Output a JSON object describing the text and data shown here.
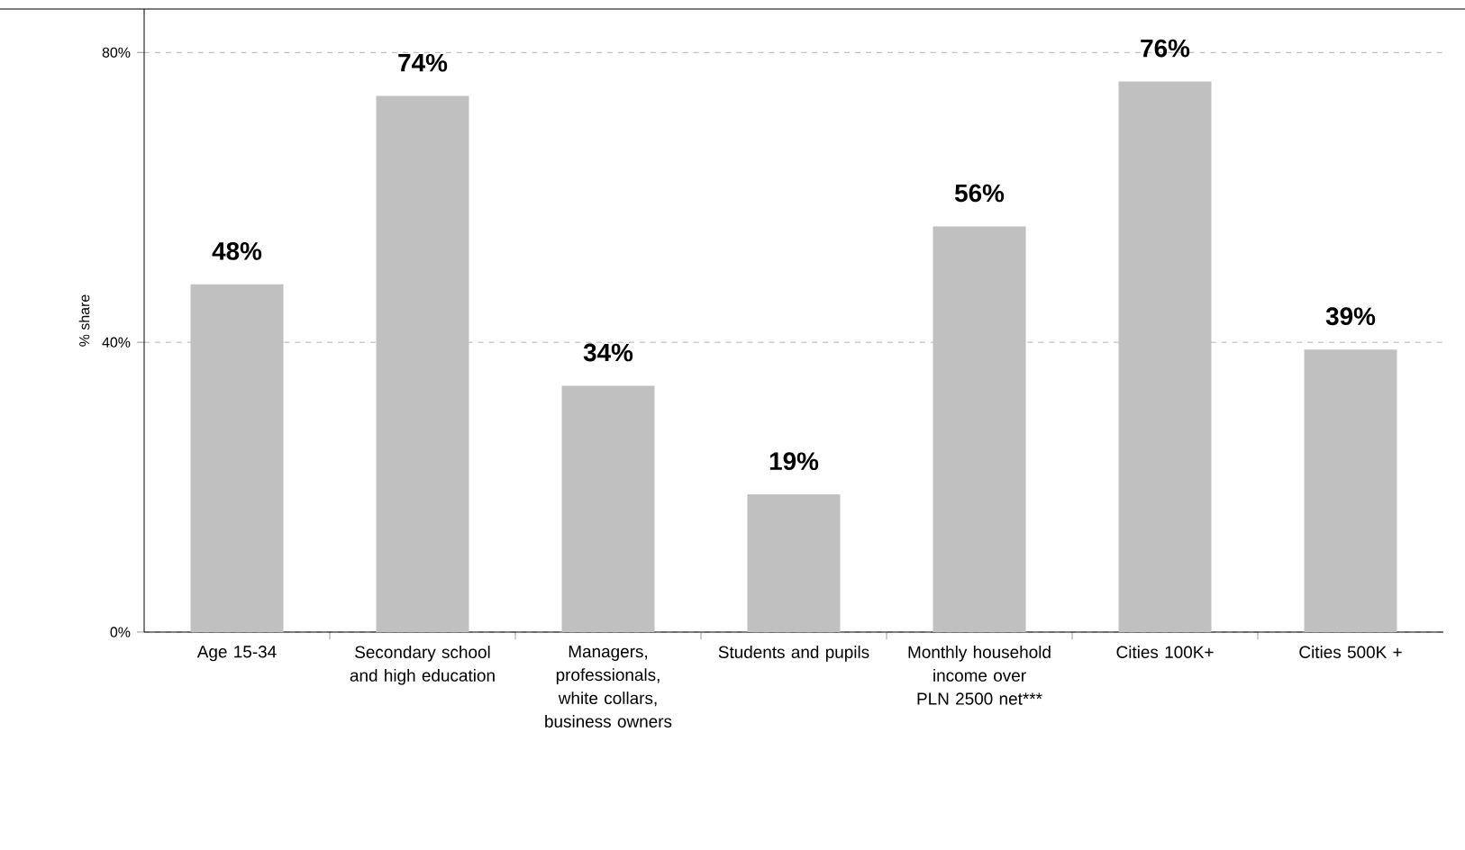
{
  "chart_data": {
    "type": "bar",
    "ylabel": "% share",
    "categories": [
      "Age 15-34",
      "Secondary school and high education",
      "Managers, professionals, white collars, business owners",
      "Students and pupils",
      "Monthly household income over PLN 2500 net***",
      "Cities 100K+",
      "Cities 500K +"
    ],
    "values": [
      48,
      74,
      34,
      19,
      56,
      76,
      39
    ],
    "value_labels": [
      "48%",
      "74%",
      "34%",
      "19%",
      "56%",
      "76%",
      "39%"
    ],
    "color": "#c0c0c0",
    "ylim": [
      0,
      86
    ],
    "yticks": [
      {
        "value": 0,
        "label": "0%"
      },
      {
        "value": 40,
        "label": "40%"
      },
      {
        "value": 80,
        "label": "80%"
      }
    ],
    "grid": "y"
  }
}
